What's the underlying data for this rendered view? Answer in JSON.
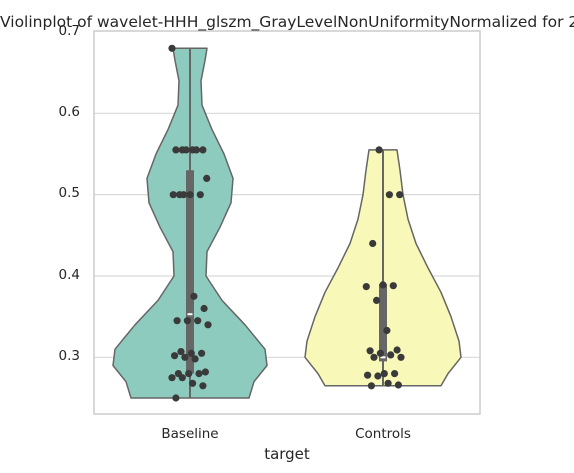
{
  "chart_data": {
    "type": "violin",
    "title": "Violinplot of wavelet-HHH_glszm_GrayLevelNonUniformityNormalized for 2",
    "xlabel": "target",
    "ylabel": "",
    "ylim": [
      0.23,
      0.7
    ],
    "yticks": [
      "0.3",
      "0.4",
      "0.5",
      "0.6",
      "0.7"
    ],
    "grid": true,
    "categories": [
      "Baseline",
      "Controls"
    ],
    "series": [
      {
        "category": "Baseline",
        "color": "#8ecbbf",
        "min": 0.25,
        "q1": 0.28,
        "median": 0.353,
        "q3": 0.53,
        "max": 0.68,
        "points": [
          0.68,
          0.555,
          0.555,
          0.555,
          0.555,
          0.555,
          0.555,
          0.52,
          0.5,
          0.5,
          0.5,
          0.5,
          0.5,
          0.375,
          0.36,
          0.345,
          0.345,
          0.345,
          0.34,
          0.307,
          0.305,
          0.305,
          0.302,
          0.3,
          0.298,
          0.282,
          0.28,
          0.28,
          0.28,
          0.275,
          0.275,
          0.268,
          0.265,
          0.25
        ]
      },
      {
        "category": "Controls",
        "color": "#f8f8b8",
        "min": 0.265,
        "q1": 0.295,
        "median": 0.3,
        "q3": 0.39,
        "max": 0.555,
        "points": [
          0.555,
          0.5,
          0.5,
          0.44,
          0.389,
          0.388,
          0.387,
          0.37,
          0.333,
          0.309,
          0.308,
          0.305,
          0.303,
          0.3,
          0.3,
          0.28,
          0.28,
          0.278,
          0.277,
          0.268,
          0.266,
          0.265
        ]
      }
    ]
  }
}
